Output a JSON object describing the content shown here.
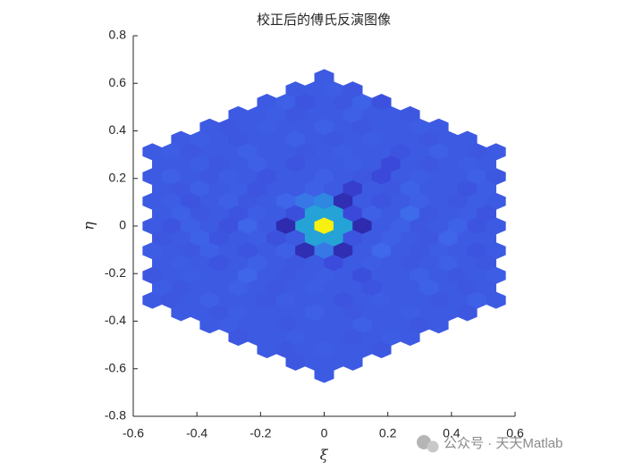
{
  "chart_data": {
    "type": "hexbin",
    "title": "校正后的傅氏反演图像",
    "xlabel": "ξ",
    "ylabel": "η",
    "xlim": [
      -0.6,
      0.6
    ],
    "ylim": [
      -0.8,
      0.8
    ],
    "xticks": [
      -0.6,
      -0.4,
      -0.2,
      0,
      0.2,
      0.4,
      0.6
    ],
    "yticks": [
      -0.8,
      -0.6,
      -0.4,
      -0.2,
      0,
      0.2,
      0.4,
      0.6,
      0.8
    ],
    "clim": [
      0,
      1
    ],
    "colormap": [
      "#2a1f9a",
      "#3a45d8",
      "#3f68ea",
      "#2a90e0",
      "#22b0d0",
      "#40c090",
      "#a8c050",
      "#f0c030",
      "#f8f010"
    ],
    "cell_width": 0.06,
    "rows": [
      {
        "y": 0.624,
        "x": [
          0
        ],
        "values": [
          0.2
        ]
      },
      {
        "y": 0.572,
        "x": [
          -0.09,
          -0.03,
          0.03,
          0.09
        ],
        "values": [
          0.2,
          0.2,
          0.21,
          0.19
        ]
      },
      {
        "y": 0.52,
        "x": [
          -0.18,
          -0.12,
          -0.06,
          0,
          0.06,
          0.12,
          0.18
        ],
        "values": [
          0.2,
          0.22,
          0.18,
          0.2,
          0.19,
          0.23,
          0.17
        ]
      },
      {
        "y": 0.468,
        "x": [
          -0.27,
          -0.21,
          -0.15,
          -0.09,
          -0.03,
          0.03,
          0.09,
          0.15,
          0.21,
          0.27
        ],
        "values": [
          0.2,
          0.2,
          0.21,
          0.19,
          0.2,
          0.2,
          0.22,
          0.2,
          0.2,
          0.19
        ]
      },
      {
        "y": 0.416,
        "x": [
          -0.36,
          -0.3,
          -0.24,
          -0.18,
          -0.12,
          -0.06,
          0,
          0.06,
          0.12,
          0.18,
          0.24,
          0.3,
          0.36
        ],
        "values": [
          0.2,
          0.19,
          0.2,
          0.21,
          0.2,
          0.2,
          0.22,
          0.2,
          0.19,
          0.2,
          0.2,
          0.21,
          0.2
        ]
      },
      {
        "y": 0.364,
        "x": [
          -0.45,
          -0.39,
          -0.33,
          -0.27,
          -0.21,
          -0.15,
          -0.09,
          -0.03,
          0.03,
          0.09,
          0.15,
          0.21,
          0.27,
          0.33,
          0.39,
          0.45
        ],
        "values": [
          0.2,
          0.21,
          0.2,
          0.19,
          0.2,
          0.2,
          0.22,
          0.2,
          0.19,
          0.2,
          0.21,
          0.2,
          0.2,
          0.19,
          0.2,
          0.2
        ]
      },
      {
        "y": 0.312,
        "x": [
          -0.54,
          -0.48,
          -0.42,
          -0.36,
          -0.3,
          -0.24,
          -0.18,
          -0.12,
          -0.06,
          0,
          0.06,
          0.12,
          0.18,
          0.24,
          0.3,
          0.36,
          0.42,
          0.48,
          0.54
        ],
        "values": [
          0.2,
          0.21,
          0.19,
          0.2,
          0.2,
          0.22,
          0.2,
          0.2,
          0.19,
          0.2,
          0.21,
          0.2,
          0.2,
          0.18,
          0.2,
          0.22,
          0.2,
          0.19,
          0.2
        ]
      },
      {
        "y": 0.26,
        "x": [
          -0.51,
          -0.45,
          -0.39,
          -0.33,
          -0.27,
          -0.21,
          -0.15,
          -0.09,
          -0.03,
          0.03,
          0.09,
          0.15,
          0.21,
          0.27,
          0.33,
          0.39,
          0.45,
          0.51
        ],
        "values": [
          0.2,
          0.2,
          0.21,
          0.19,
          0.2,
          0.22,
          0.2,
          0.18,
          0.2,
          0.2,
          0.21,
          0.2,
          0.14,
          0.2,
          0.19,
          0.2,
          0.21,
          0.2
        ]
      },
      {
        "y": 0.208,
        "x": [
          -0.54,
          -0.48,
          -0.42,
          -0.36,
          -0.3,
          -0.24,
          -0.18,
          -0.12,
          -0.06,
          0,
          0.06,
          0.12,
          0.18,
          0.24,
          0.3,
          0.36,
          0.42,
          0.48,
          0.54
        ],
        "values": [
          0.2,
          0.22,
          0.2,
          0.19,
          0.21,
          0.2,
          0.18,
          0.2,
          0.2,
          0.22,
          0.2,
          0.19,
          0.14,
          0.2,
          0.21,
          0.2,
          0.2,
          0.22,
          0.19
        ]
      },
      {
        "y": 0.156,
        "x": [
          -0.51,
          -0.45,
          -0.39,
          -0.33,
          -0.27,
          -0.21,
          -0.15,
          -0.09,
          -0.03,
          0.03,
          0.09,
          0.15,
          0.21,
          0.27,
          0.33,
          0.39,
          0.45,
          0.51
        ],
        "values": [
          0.2,
          0.19,
          0.22,
          0.2,
          0.21,
          0.18,
          0.2,
          0.2,
          0.22,
          0.2,
          0.1,
          0.2,
          0.19,
          0.23,
          0.2,
          0.2,
          0.18,
          0.21
        ]
      },
      {
        "y": 0.104,
        "x": [
          -0.54,
          -0.48,
          -0.42,
          -0.36,
          -0.3,
          -0.24,
          -0.18,
          -0.12,
          -0.06,
          0,
          0.06,
          0.12,
          0.18,
          0.24,
          0.3,
          0.36,
          0.42,
          0.48,
          0.54
        ],
        "values": [
          0.2,
          0.21,
          0.18,
          0.2,
          0.22,
          0.19,
          0.2,
          0.24,
          0.3,
          0.35,
          0.05,
          0.2,
          0.18,
          0.2,
          0.22,
          0.2,
          0.19,
          0.21,
          0.2
        ]
      },
      {
        "y": 0.052,
        "x": [
          -0.51,
          -0.45,
          -0.39,
          -0.33,
          -0.27,
          -0.21,
          -0.15,
          -0.09,
          -0.03,
          0.03,
          0.09,
          0.15,
          0.21,
          0.27,
          0.33,
          0.39,
          0.45,
          0.51
        ],
        "values": [
          0.2,
          0.22,
          0.19,
          0.2,
          0.18,
          0.21,
          0.2,
          0.16,
          0.45,
          0.45,
          0.14,
          0.22,
          0.2,
          0.26,
          0.19,
          0.2,
          0.21,
          0.18
        ]
      },
      {
        "y": 0,
        "x": [
          -0.54,
          -0.48,
          -0.42,
          -0.36,
          -0.3,
          -0.24,
          -0.18,
          -0.12,
          -0.06,
          0,
          0.06,
          0.12,
          0.18,
          0.24,
          0.3,
          0.36,
          0.42,
          0.48,
          0.54
        ],
        "values": [
          0.2,
          0.18,
          0.22,
          0.2,
          0.17,
          0.24,
          0.2,
          0.04,
          0.45,
          1,
          0.45,
          0.04,
          0.2,
          0.22,
          0.19,
          0.2,
          0.23,
          0.18,
          0.2
        ]
      },
      {
        "y": -0.052,
        "x": [
          -0.51,
          -0.45,
          -0.39,
          -0.33,
          -0.27,
          -0.21,
          -0.15,
          -0.09,
          -0.03,
          0.03,
          0.09,
          0.15,
          0.21,
          0.27,
          0.33,
          0.39,
          0.45,
          0.51
        ],
        "values": [
          0.19,
          0.2,
          0.23,
          0.18,
          0.2,
          0.21,
          0.17,
          0.2,
          0.45,
          0.45,
          0.18,
          0.2,
          0.22,
          0.2,
          0.19,
          0.24,
          0.2,
          0.2
        ]
      },
      {
        "y": -0.104,
        "x": [
          -0.54,
          -0.48,
          -0.42,
          -0.36,
          -0.3,
          -0.24,
          -0.18,
          -0.12,
          -0.06,
          0,
          0.06,
          0.12,
          0.18,
          0.24,
          0.3,
          0.36,
          0.42,
          0.48,
          0.54
        ],
        "values": [
          0.21,
          0.2,
          0.19,
          0.22,
          0.2,
          0.18,
          0.2,
          0.22,
          0.05,
          0.3,
          0.05,
          0.2,
          0.25,
          0.2,
          0.19,
          0.21,
          0.2,
          0.18,
          0.2
        ]
      },
      {
        "y": -0.156,
        "x": [
          -0.51,
          -0.45,
          -0.39,
          -0.33,
          -0.27,
          -0.21,
          -0.15,
          -0.09,
          -0.03,
          0.03,
          0.09,
          0.15,
          0.21,
          0.27,
          0.33,
          0.39,
          0.45,
          0.51
        ],
        "values": [
          0.2,
          0.21,
          0.2,
          0.18,
          0.2,
          0.22,
          0.2,
          0.19,
          0.2,
          0.15,
          0.2,
          0.21,
          0.2,
          0.19,
          0.2,
          0.22,
          0.2,
          0.19
        ]
      },
      {
        "y": -0.208,
        "x": [
          -0.54,
          -0.48,
          -0.42,
          -0.36,
          -0.3,
          -0.24,
          -0.18,
          -0.12,
          -0.06,
          0,
          0.06,
          0.12,
          0.18,
          0.24,
          0.3,
          0.36,
          0.42,
          0.48,
          0.54
        ],
        "values": [
          0.19,
          0.2,
          0.21,
          0.2,
          0.2,
          0.24,
          0.2,
          0.19,
          0.2,
          0.21,
          0.2,
          0.16,
          0.2,
          0.2,
          0.22,
          0.2,
          0.19,
          0.2,
          0.21
        ]
      },
      {
        "y": -0.26,
        "x": [
          -0.51,
          -0.45,
          -0.39,
          -0.33,
          -0.27,
          -0.21,
          -0.15,
          -0.09,
          -0.03,
          0.03,
          0.09,
          0.15,
          0.21,
          0.27,
          0.33,
          0.39,
          0.45,
          0.51
        ],
        "values": [
          0.21,
          0.19,
          0.2,
          0.2,
          0.22,
          0.2,
          0.19,
          0.2,
          0.21,
          0.2,
          0.2,
          0.18,
          0.2,
          0.2,
          0.23,
          0.2,
          0.19,
          0.2
        ]
      },
      {
        "y": -0.312,
        "x": [
          -0.54,
          -0.48,
          -0.42,
          -0.36,
          -0.3,
          -0.24,
          -0.18,
          -0.12,
          -0.06,
          0,
          0.06,
          0.12,
          0.18,
          0.24,
          0.3,
          0.36,
          0.42,
          0.48,
          0.54
        ],
        "values": [
          0.2,
          0.19,
          0.2,
          0.22,
          0.2,
          0.2,
          0.19,
          0.21,
          0.2,
          0.2,
          0.18,
          0.2,
          0.21,
          0.2,
          0.2,
          0.19,
          0.2,
          0.22,
          0.2
        ]
      },
      {
        "y": -0.364,
        "x": [
          -0.45,
          -0.39,
          -0.33,
          -0.27,
          -0.21,
          -0.15,
          -0.09,
          -0.03,
          0.03,
          0.09,
          0.15,
          0.21,
          0.27,
          0.33,
          0.39,
          0.45
        ],
        "values": [
          0.2,
          0.2,
          0.19,
          0.21,
          0.2,
          0.2,
          0.2,
          0.22,
          0.2,
          0.19,
          0.2,
          0.2,
          0.21,
          0.2,
          0.2,
          0.19
        ]
      },
      {
        "y": -0.416,
        "x": [
          -0.36,
          -0.3,
          -0.24,
          -0.18,
          -0.12,
          -0.06,
          0,
          0.06,
          0.12,
          0.18,
          0.24,
          0.3,
          0.36
        ],
        "values": [
          0.2,
          0.21,
          0.2,
          0.2,
          0.19,
          0.2,
          0.2,
          0.2,
          0.22,
          0.2,
          0.2,
          0.19,
          0.2
        ]
      },
      {
        "y": -0.468,
        "x": [
          -0.27,
          -0.21,
          -0.15,
          -0.09,
          -0.03,
          0.03,
          0.09,
          0.15,
          0.21,
          0.27
        ],
        "values": [
          0.19,
          0.2,
          0.2,
          0.21,
          0.2,
          0.2,
          0.19,
          0.2,
          0.21,
          0.2
        ]
      },
      {
        "y": -0.52,
        "x": [
          -0.18,
          -0.12,
          -0.06,
          0,
          0.06,
          0.12,
          0.18
        ],
        "values": [
          0.2,
          0.19,
          0.2,
          0.21,
          0.2,
          0.2,
          0.19
        ]
      },
      {
        "y": -0.572,
        "x": [
          -0.09,
          -0.03,
          0.03,
          0.09
        ],
        "values": [
          0.19,
          0.2,
          0.2,
          0.2
        ]
      },
      {
        "y": -0.624,
        "x": [
          0
        ],
        "values": [
          0.2
        ]
      }
    ],
    "watermark": "公众号 · 天天Matlab"
  }
}
